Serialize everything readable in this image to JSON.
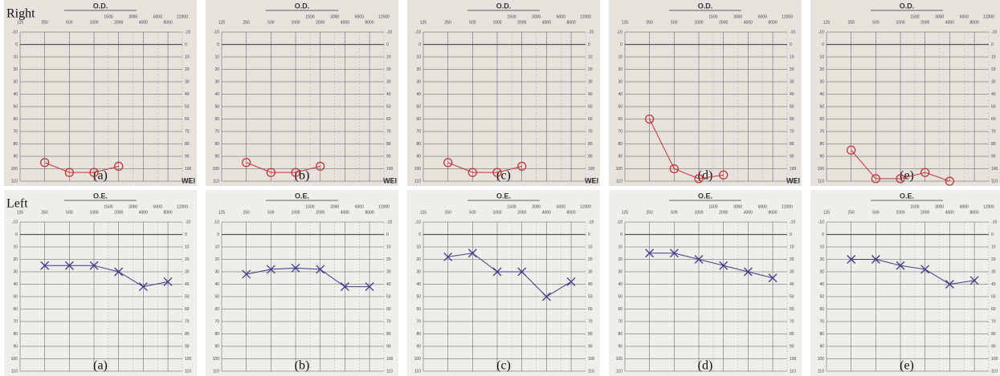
{
  "chart_data": {
    "type": "audiogram",
    "rows": [
      {
        "label": "Right",
        "header": "O.D.",
        "color": "#c8323c",
        "marker": "circle",
        "note": "WEI"
      },
      {
        "label": "Left",
        "header": "O.E.",
        "color": "#3b3b8c",
        "marker": "cross"
      }
    ],
    "panels": [
      "(a)",
      "(b)",
      "(c)",
      "(d)",
      "(e)"
    ],
    "xlim": [
      125,
      12000
    ],
    "xticks": [
      125,
      250,
      500,
      1000,
      2000,
      4000,
      8000
    ],
    "xticks_upper": [
      1500,
      3000,
      6000,
      12000
    ],
    "ylim": [
      -10,
      110
    ],
    "yticks": [
      -10,
      0,
      10,
      20,
      30,
      40,
      50,
      60,
      70,
      80,
      90,
      100,
      110
    ],
    "x": [
      250,
      500,
      1000,
      2000,
      4000,
      8000
    ],
    "series": [
      [
        [
          95,
          103,
          103,
          98,
          null,
          null
        ],
        [
          95,
          103,
          103,
          98,
          null,
          null
        ],
        [
          95,
          103,
          103,
          98,
          null,
          null
        ],
        [
          60,
          100,
          108,
          105,
          null,
          null
        ],
        [
          85,
          108,
          108,
          103,
          110,
          null
        ]
      ],
      [
        [
          25,
          25,
          25,
          30,
          42,
          38
        ],
        [
          32,
          28,
          27,
          28,
          42,
          42
        ],
        [
          18,
          15,
          30,
          30,
          50,
          38
        ],
        [
          15,
          15,
          20,
          25,
          30,
          35
        ],
        [
          20,
          20,
          25,
          28,
          40,
          37
        ]
      ]
    ]
  }
}
